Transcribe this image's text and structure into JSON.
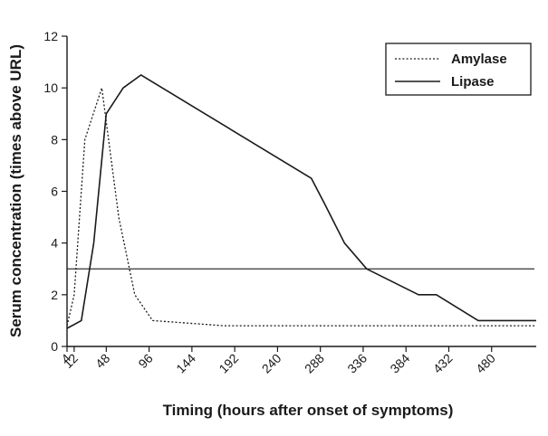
{
  "chart_data": {
    "type": "line",
    "xlabel": "Timing (hours after onset of symptoms)",
    "ylabel": "Serum concentration (times above URL)",
    "xlim": [
      4,
      530
    ],
    "ylim": [
      0,
      12
    ],
    "x_ticks": [
      4,
      12,
      48,
      96,
      144,
      192,
      240,
      288,
      336,
      384,
      432,
      480
    ],
    "y_ticks": [
      0,
      2,
      4,
      6,
      8,
      10,
      12
    ],
    "grid": false,
    "legend_position": "top-right",
    "series": [
      {
        "name": "Amylase",
        "style": "dotted",
        "color": "#1a1a1a",
        "points": [
          [
            4,
            0.8
          ],
          [
            12,
            2
          ],
          [
            24,
            8
          ],
          [
            43,
            10
          ],
          [
            62,
            5
          ],
          [
            80,
            2
          ],
          [
            100,
            1
          ],
          [
            180,
            0.8
          ],
          [
            530,
            0.8
          ]
        ]
      },
      {
        "name": "Lipase",
        "style": "solid",
        "color": "#1a1a1a",
        "points": [
          [
            4,
            0.7
          ],
          [
            20,
            1
          ],
          [
            34,
            4
          ],
          [
            48,
            9
          ],
          [
            67,
            10
          ],
          [
            87,
            10.5
          ],
          [
            278,
            6.5
          ],
          [
            293,
            5.5
          ],
          [
            315,
            4
          ],
          [
            340,
            3
          ],
          [
            398,
            2
          ],
          [
            418,
            2
          ],
          [
            465,
            1
          ],
          [
            530,
            1
          ]
        ]
      }
    ],
    "reference_lines": [
      {
        "y": 3,
        "style": "solid",
        "color": "#333333"
      }
    ]
  }
}
